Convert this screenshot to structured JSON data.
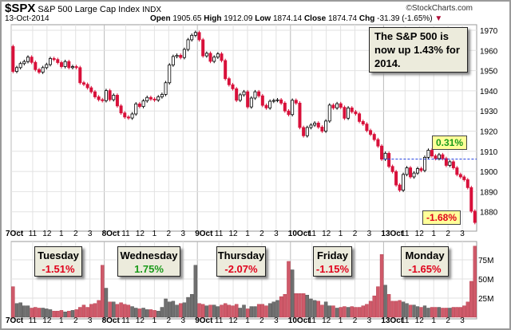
{
  "header": {
    "symbol": "$SPX",
    "name": "S&P 500 Large Cap Index",
    "exchange": "INDX",
    "date": "13-Oct-2014",
    "copyright": "©StockCharts.com",
    "open_label": "Open",
    "open": "1905.65",
    "high_label": "High",
    "high": "1912.09",
    "low_label": "Low",
    "low": "1874.14",
    "close_label": "Close",
    "close": "1874.74",
    "chg_label": "Chg",
    "chg": "-31.39 (-1.65%)"
  },
  "notes": {
    "ytd": "The S&P 500 is now up 1.43% for 2014.",
    "callout_up": "0.31%",
    "callout_down": "-1.68%"
  },
  "day_boxes": [
    {
      "day": "Tuesday",
      "pct": "-1.51%",
      "color": "#e0001b"
    },
    {
      "day": "Wednesday",
      "pct": "1.75%",
      "color": "#1a9a1a"
    },
    {
      "day": "Thursday",
      "pct": "-2.07%",
      "color": "#e0001b"
    },
    {
      "day": "Friday",
      "pct": "-1.15%",
      "color": "#e0001b"
    },
    {
      "day": "Monday",
      "pct": "-1.65%",
      "color": "#e0001b"
    }
  ],
  "chart_data": {
    "type": "candlestick",
    "first_open": 1962,
    "days": [
      "7Oct",
      "8Oct",
      "9Oct",
      "10Oct",
      "13Oct"
    ],
    "hour_ticks": [
      "11",
      "12",
      "1",
      "2",
      "3"
    ],
    "closes": [
      [
        1949.6,
        1951.5,
        1953.5,
        1954.5,
        1956.7,
        1954.1,
        1950.5,
        1949.2,
        1951.5,
        1953,
        1956,
        1955.5,
        1954,
        1952,
        1954.5,
        1951.5,
        1952,
        1951.5,
        1944,
        1943.2,
        1941.5,
        1939.5,
        1937,
        1935.6,
        1935.1
      ],
      [
        1940.1,
        1935.6,
        1937.8,
        1932.5,
        1929,
        1927,
        1926.5,
        1928.5,
        1933.5,
        1932.2,
        1935,
        1936.7,
        1935.9,
        1935.4,
        1937,
        1938.2,
        1944,
        1952.8,
        1957,
        1957.6,
        1956.5,
        1960.5,
        1965.3,
        1967.5,
        1968.9
      ],
      [
        1965.3,
        1957.3,
        1958.6,
        1954.6,
        1956.7,
        1958.3,
        1955,
        1946,
        1943,
        1941,
        1935.3,
        1938,
        1939.5,
        1932,
        1936.4,
        1939.5,
        1937.5,
        1932.8,
        1931.5,
        1934.8,
        1935.2,
        1935.5,
        1933.9,
        1930,
        1928.2
      ],
      [
        1935.3,
        1933.9,
        1921.8,
        1917.7,
        1921.8,
        1923,
        1924,
        1922,
        1920,
        1925,
        1932.9,
        1931.5,
        1933.6,
        1931.8,
        1926.4,
        1931.5,
        1929.6,
        1928.6,
        1924.8,
        1923.5,
        1920.3,
        1918.4,
        1915.8,
        1912.6,
        1906.1
      ],
      [
        1909,
        1902.5,
        1899.9,
        1893.3,
        1890.7,
        1898.5,
        1901.8,
        1897.3,
        1899.2,
        1901.4,
        1900.5,
        1907,
        1910.5,
        1907.7,
        1906.4,
        1908.3,
        1906.4,
        1903,
        1904.8,
        1901.8,
        1898.5,
        1897.3,
        1895.9,
        1892,
        1880.3,
        1874.7
      ]
    ],
    "volume_millions": [
      [
        40,
        18,
        19,
        15,
        15,
        12,
        13,
        12,
        12,
        11,
        10,
        8,
        8,
        9,
        7,
        8,
        9,
        10,
        13,
        16,
        13,
        17,
        18,
        22,
        68
      ],
      [
        38,
        20,
        20,
        17,
        19,
        17,
        16,
        14,
        12,
        11,
        12,
        10,
        10,
        9,
        8,
        13,
        24,
        20,
        21,
        16,
        18,
        19,
        26,
        30,
        68
      ],
      [
        18,
        17,
        15,
        16,
        16,
        14,
        16,
        18,
        16,
        15,
        17,
        12,
        16,
        11,
        14,
        14,
        17,
        17,
        15,
        18,
        20,
        22,
        27,
        30,
        73
      ],
      [
        62,
        31,
        31,
        31,
        29,
        24,
        22,
        21,
        16,
        20,
        15,
        15,
        12,
        13,
        14,
        13,
        14,
        13,
        13,
        15,
        17,
        21,
        28,
        40,
        82
      ],
      [
        42,
        30,
        21,
        21,
        22,
        20,
        18,
        16,
        16,
        14,
        13,
        15,
        12,
        13,
        13,
        13,
        12,
        12,
        12,
        13,
        13,
        13,
        15,
        20,
        47,
        93
      ]
    ],
    "prev_close_line": 1906.13,
    "ylim": [
      1870,
      1975
    ],
    "yticks": [
      1880,
      1890,
      1900,
      1910,
      1920,
      1930,
      1940,
      1950,
      1960,
      1970
    ],
    "vol_ticks": [
      {
        "v": 25,
        "label": "25M"
      },
      {
        "v": 50,
        "label": "50M"
      },
      {
        "v": 75,
        "label": "75M"
      }
    ],
    "colors": {
      "up": "#ffffff",
      "down": "#d8103a",
      "vol_up": "#cf5a6a",
      "vol_down": "#707070",
      "dash": "#1f3fe0"
    }
  }
}
